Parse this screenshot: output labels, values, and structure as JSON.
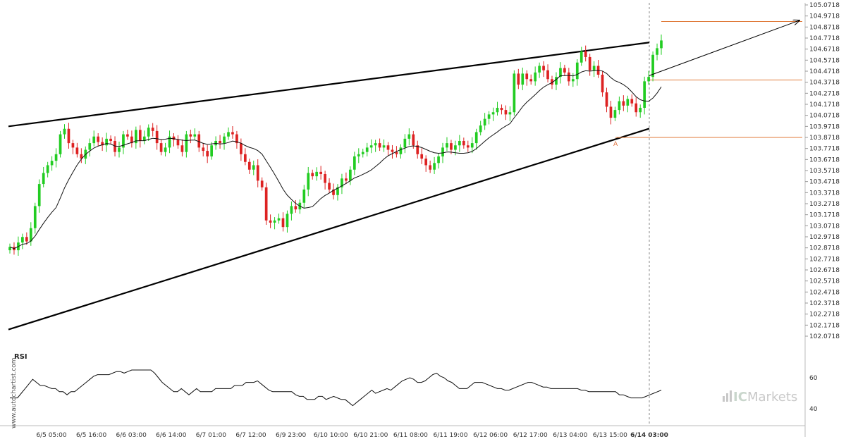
{
  "chart_data": {
    "type": "candlestick",
    "y_axis": {
      "ticks": [
        "105.0718",
        "104.9718",
        "104.8718",
        "104.7718",
        "104.6718",
        "104.5718",
        "104.4718",
        "104.3718",
        "104.2718",
        "104.1718",
        "104.0718",
        "103.9718",
        "103.8718",
        "103.7718",
        "103.6718",
        "103.5718",
        "103.4718",
        "103.3718",
        "103.2718",
        "103.1718",
        "103.0718",
        "102.9718",
        "102.8718",
        "102.7718",
        "102.6718",
        "102.5718",
        "102.4718",
        "102.3718",
        "102.2718",
        "102.1718",
        "102.0718"
      ],
      "ylim": [
        102.0718,
        105.0718
      ]
    },
    "x_axis": {
      "ticks": [
        "6/5 05:00",
        "6/5 16:00",
        "6/6 03:00",
        "6/6 14:00",
        "6/7 01:00",
        "6/7 12:00",
        "6/9 23:00",
        "6/10 10:00",
        "6/10 21:00",
        "6/11 08:00",
        "6/11 19:00",
        "6/12 06:00",
        "6/12 17:00",
        "6/13 04:00",
        "6/13 15:00",
        "6/14 03:00"
      ],
      "highlight_tick": "6/14 03:00"
    },
    "series": [
      {
        "name": "",
        "close": [
          102.88,
          102.85,
          102.92,
          102.97,
          102.93,
          103.05,
          103.25,
          103.45,
          103.55,
          103.62,
          103.66,
          103.72,
          103.9,
          103.95,
          103.82,
          103.78,
          103.72,
          103.68,
          103.76,
          103.82,
          103.88,
          103.83,
          103.8,
          103.86,
          103.84,
          103.74,
          103.78,
          103.9,
          103.88,
          103.82,
          103.94,
          103.84,
          103.88,
          103.96,
          103.93,
          103.82,
          103.74,
          103.78,
          103.88,
          103.85,
          103.8,
          103.74,
          103.9,
          103.88,
          103.9,
          103.78,
          103.75,
          103.7,
          103.8,
          103.84,
          103.82,
          103.88,
          103.92,
          103.9,
          103.82,
          103.72,
          103.65,
          103.58,
          103.62,
          103.48,
          103.42,
          103.12,
          103.1,
          103.12,
          103.14,
          103.06,
          103.18,
          103.25,
          103.22,
          103.28,
          103.4,
          103.55,
          103.52,
          103.56,
          103.54,
          103.46,
          103.4,
          103.35,
          103.42,
          103.5,
          103.48,
          103.58,
          103.7,
          103.72,
          103.74,
          103.78,
          103.8,
          103.82,
          103.78,
          103.8,
          103.76,
          103.74,
          103.72,
          103.78,
          103.86,
          103.9,
          103.8,
          103.72,
          103.68,
          103.62,
          103.58,
          103.64,
          103.7,
          103.78,
          103.82,
          103.76,
          103.8,
          103.84,
          103.8,
          103.78,
          103.82,
          103.92,
          103.98,
          104.04,
          104.08,
          104.1,
          104.14,
          104.12,
          104.08,
          104.1,
          104.45,
          104.35,
          104.45,
          104.4,
          104.38,
          104.46,
          104.52,
          104.48,
          104.4,
          104.35,
          104.42,
          104.5,
          104.46,
          104.38,
          104.4,
          104.55,
          104.65,
          104.6,
          104.48,
          104.52,
          104.44,
          104.28,
          104.15,
          104.05,
          104.12,
          104.2,
          104.16,
          104.22,
          104.18,
          104.1,
          104.14,
          104.38,
          104.42,
          104.62,
          104.68,
          104.75
        ]
      }
    ],
    "overlays": {
      "moving_average": true,
      "channel_upper": [
        103.9718,
        104.7318
      ],
      "channel_lower": [
        102.1318,
        103.9518
      ],
      "support_level": 103.8718,
      "resistance_level": 104.3918,
      "target_level": 104.9218,
      "projection": [
        104.4318,
        104.9318
      ],
      "point_label": "A"
    },
    "rsi": {
      "label": "RSI",
      "ticks": [
        "60",
        "40"
      ],
      "values": [
        47,
        47,
        47,
        50,
        53,
        56,
        59,
        57,
        55,
        55,
        54,
        53,
        53,
        51,
        51,
        49,
        51,
        51,
        53,
        55,
        57,
        59,
        61,
        62,
        62,
        62,
        62,
        63,
        64,
        64,
        63,
        64,
        65,
        65,
        65,
        65,
        65,
        65,
        63,
        60,
        57,
        55,
        53,
        51,
        51,
        53,
        51,
        49,
        51,
        53,
        51,
        51,
        51,
        51,
        53,
        53,
        53,
        53,
        53,
        55,
        55,
        55,
        57,
        57,
        57,
        58,
        56,
        54,
        52,
        51,
        51,
        51,
        51,
        51,
        51,
        49,
        48,
        48,
        46,
        46,
        46,
        48,
        48,
        46,
        47,
        48,
        47,
        46,
        46,
        44,
        42,
        44,
        46,
        48,
        50,
        52,
        50,
        51,
        52,
        53,
        52,
        54,
        56,
        58,
        59,
        60,
        59,
        57,
        57,
        58,
        60,
        62,
        63,
        61,
        60,
        58,
        57,
        55,
        53,
        53,
        53,
        55,
        57,
        57,
        57,
        56,
        55,
        54,
        53,
        53,
        52,
        52,
        53,
        54,
        55,
        56,
        57,
        57,
        56,
        55,
        54,
        54,
        53,
        53,
        53,
        53,
        53,
        53,
        53,
        53,
        52,
        52,
        51,
        51,
        51,
        51,
        51,
        51,
        51,
        51,
        49,
        49,
        48,
        47,
        47,
        47,
        47,
        48,
        49,
        50,
        51,
        52
      ]
    },
    "grid": false
  },
  "watermark": "www.autochartist.com",
  "brand": {
    "ic": "IC",
    "rest": "Markets"
  },
  "colors": {
    "bull": "#22cc22",
    "bear": "#dd2222",
    "orange": "#e07a3a",
    "line": "#000000",
    "axis": "#bbbbbb"
  }
}
